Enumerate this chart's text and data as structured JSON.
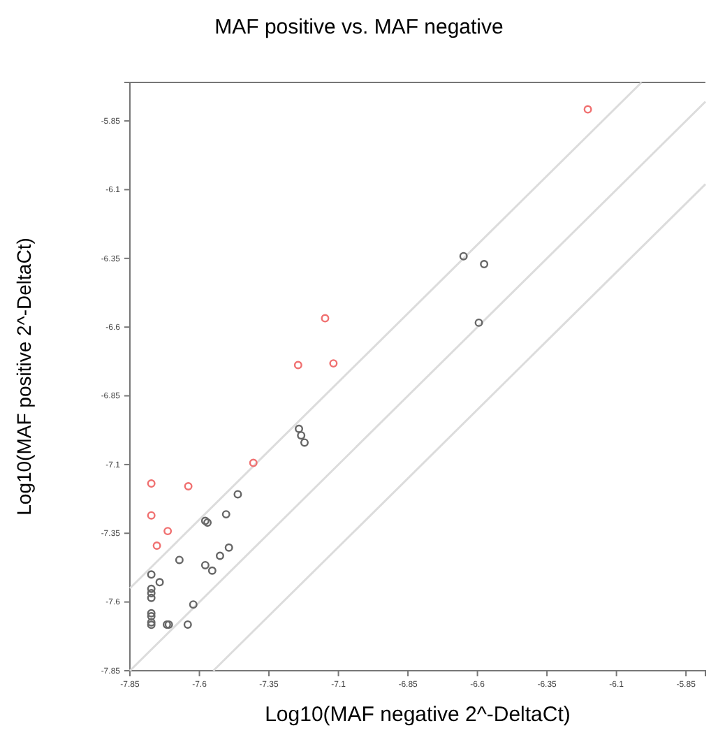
{
  "chart_data": {
    "type": "scatter",
    "title": "MAF positive vs. MAF negative",
    "xlabel": "Log10(MAF negative 2^-DeltaCt)",
    "ylabel": "Log10(MAF positive 2^-DeltaCt)",
    "xlim": [
      -7.85,
      -5.78
    ],
    "ylim": [
      -7.85,
      -5.71
    ],
    "xticks": [
      -7.85,
      -7.6,
      -7.35,
      -7.1,
      -6.85,
      -6.6,
      -6.35,
      -6.1,
      -5.85
    ],
    "yticks": [
      -7.85,
      -7.6,
      -7.35,
      -7.1,
      -6.85,
      -6.6,
      -6.35,
      -6.1,
      -5.85
    ],
    "grid": false,
    "marker": "circle",
    "series": [
      {
        "type": "line",
        "marker": "none",
        "color": "#dcdcdc",
        "x": [
          -7.85,
          -6.01
        ],
        "values": [
          -7.55,
          -5.71
        ]
      },
      {
        "type": "line",
        "marker": "none",
        "color": "#dcdcdc",
        "x": [
          -7.85,
          -5.78
        ],
        "values": [
          -7.85,
          -5.78
        ]
      },
      {
        "type": "line",
        "marker": "none",
        "color": "#dcdcdc",
        "x": [
          -7.55,
          -5.78
        ],
        "values": [
          -7.85,
          -6.08
        ]
      },
      {
        "color": "#666666",
        "x": [
          -6.65,
          -6.576,
          -6.595,
          -7.242,
          -7.234,
          -7.222,
          -7.462,
          -7.504,
          -7.579,
          -7.571,
          -7.494,
          -7.526,
          -7.672,
          -7.579,
          -7.554,
          -7.773,
          -7.743,
          -7.773,
          -7.773,
          -7.773,
          -7.622,
          -7.773,
          -7.773,
          -7.773,
          -7.773,
          -7.717,
          -7.71,
          -7.642
        ],
        "values": [
          -6.342,
          -6.371,
          -6.584,
          -6.97,
          -6.994,
          -7.02,
          -7.208,
          -7.281,
          -7.305,
          -7.311,
          -7.402,
          -7.432,
          -7.447,
          -7.466,
          -7.486,
          -7.5,
          -7.528,
          -7.552,
          -7.568,
          -7.585,
          -7.609,
          -7.641,
          -7.652,
          -7.674,
          -7.683,
          -7.682,
          -7.682,
          -7.682
        ]
      },
      {
        "color": "#f07070",
        "x": [
          -6.203,
          -7.148,
          -7.245,
          -7.118,
          -7.406,
          -7.773,
          -7.64,
          -7.773,
          -7.714,
          -7.753
        ],
        "values": [
          -5.808,
          -6.568,
          -6.738,
          -6.732,
          -7.094,
          -7.169,
          -7.179,
          -7.285,
          -7.342,
          -7.395
        ]
      }
    ]
  }
}
